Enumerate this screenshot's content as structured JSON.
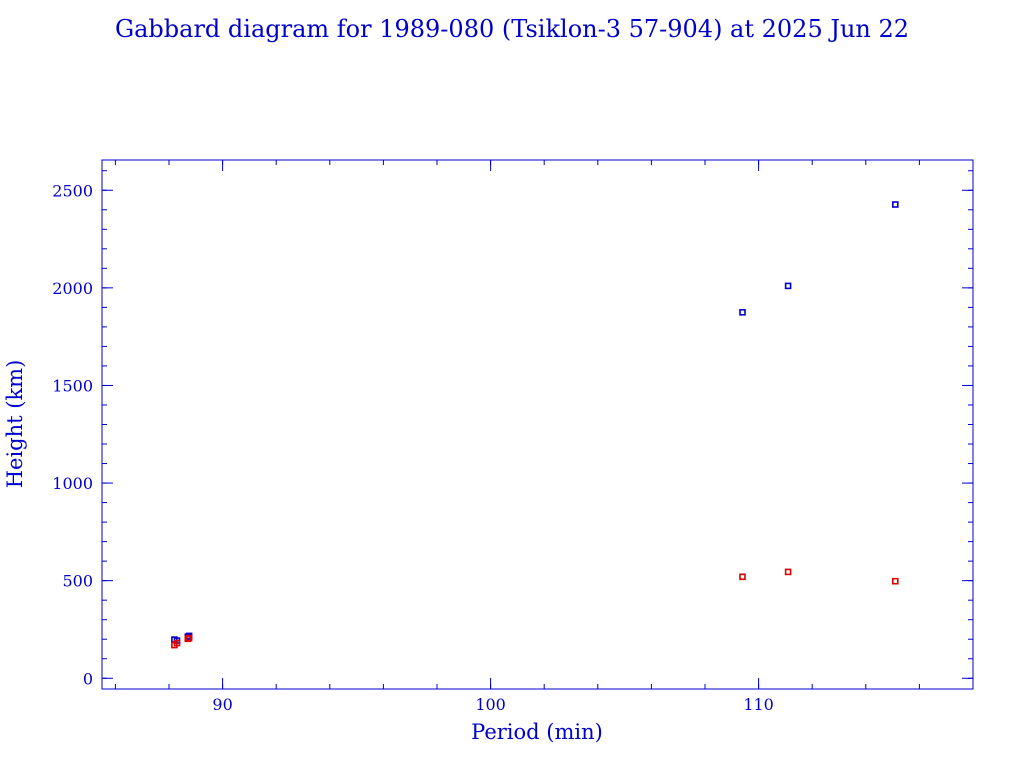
{
  "chart_data": {
    "type": "scatter",
    "title": "Gabbard diagram for 1989-080 (Tsiklon-3 57-904) at 2025 Jun 22",
    "xlabel": "Period (min)",
    "ylabel": "Height (km)",
    "xlim": [
      85.5,
      118
    ],
    "ylim": [
      -55,
      2655
    ],
    "x_ticks": [
      90,
      100,
      110
    ],
    "y_ticks": [
      0,
      500,
      1000,
      1500,
      2000,
      2500
    ],
    "x_minor_step": 2,
    "y_minor_step": 100,
    "colors": {
      "frame": "#0000cc",
      "text": "#0000cc",
      "apogee": "#0000cc",
      "perigee": "#dd0000"
    },
    "series": [
      {
        "role": "apogee",
        "color": "#0000cc",
        "points": [
          {
            "x": 88.2,
            "y": 198
          },
          {
            "x": 88.3,
            "y": 193
          },
          {
            "x": 88.7,
            "y": 213
          },
          {
            "x": 88.75,
            "y": 217
          },
          {
            "x": 109.4,
            "y": 1875
          },
          {
            "x": 111.1,
            "y": 2010
          },
          {
            "x": 115.1,
            "y": 2427
          }
        ]
      },
      {
        "role": "perigee",
        "color": "#dd0000",
        "points": [
          {
            "x": 88.2,
            "y": 170
          },
          {
            "x": 88.3,
            "y": 180
          },
          {
            "x": 88.7,
            "y": 202
          },
          {
            "x": 88.75,
            "y": 206
          },
          {
            "x": 109.4,
            "y": 520
          },
          {
            "x": 111.1,
            "y": 545
          },
          {
            "x": 115.1,
            "y": 497
          }
        ]
      }
    ]
  }
}
